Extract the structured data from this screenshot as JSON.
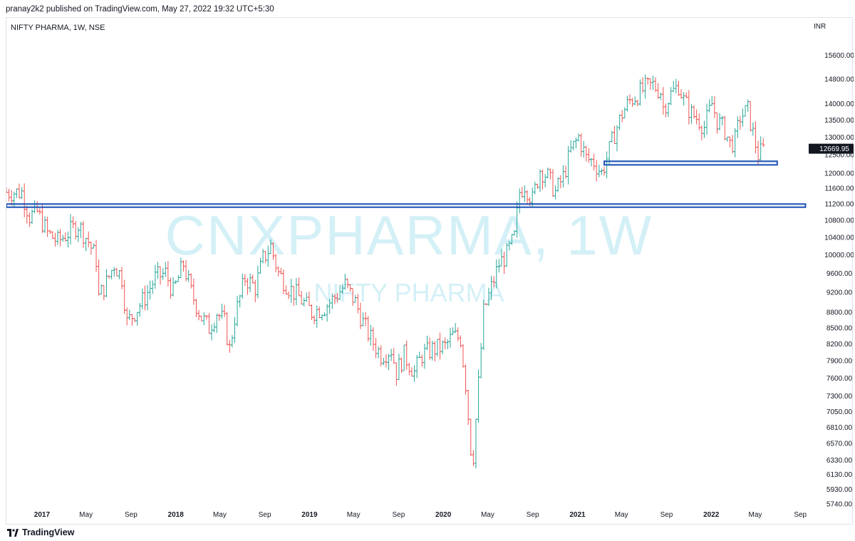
{
  "header": {
    "published": "pranay2k2 published on TradingView.com, May 27, 2022 19:32 UTC+5:30"
  },
  "footer": {
    "brand": "TradingView",
    "icon": "tradingview-logo-icon"
  },
  "chart": {
    "symbol_label": "NIFTY PHARMA, 1W, NSE",
    "currency": "INR",
    "watermark_main": "CNXPHARMA, 1W",
    "watermark_sub": "NIFTY PHARMA",
    "last_price_label": "12669.95"
  },
  "colors": {
    "up": "#26a69a",
    "down": "#ef5350",
    "watermark": "#d4f0f7",
    "zone": "#1e53b6",
    "price_tag": "#131722"
  },
  "chart_data": {
    "type": "ohlc",
    "title": "NIFTY PHARMA, 1W, NSE",
    "ylabel": "INR",
    "y_scale": "log",
    "ylim": [
      5740,
      16300
    ],
    "y_ticks": [
      15600,
      14800,
      14000,
      13500,
      13000,
      12500,
      12000,
      11600,
      11200,
      10800,
      10400,
      10000,
      9600,
      9200,
      8800,
      8500,
      8200,
      7900,
      7600,
      7300,
      7050,
      6810,
      6570,
      6330,
      6130,
      5930,
      5740
    ],
    "y_tick_labels": [
      "15600.00",
      "14800.00",
      "14000.00",
      "13500.00",
      "13000.00",
      "12500.00",
      "12000.00",
      "11600.00",
      "11200.00",
      "10800.00",
      "10400.00",
      "10000.00",
      "9600.00",
      "9200.00",
      "8800.00",
      "8500.00",
      "8200.00",
      "7900.00",
      "7600.00",
      "7300.00",
      "7050.00",
      "6810.00",
      "6570.00",
      "6330.00",
      "6130.00",
      "5930.00",
      "5740.00"
    ],
    "x_range": [
      "2016-09-26",
      "2022-09-20"
    ],
    "x_ticks": [
      {
        "date": "2017-01-01",
        "label": "2017",
        "major": true
      },
      {
        "date": "2017-05-01",
        "label": "May",
        "major": false
      },
      {
        "date": "2017-09-01",
        "label": "Sep",
        "major": false
      },
      {
        "date": "2018-01-01",
        "label": "2018",
        "major": true
      },
      {
        "date": "2018-05-01",
        "label": "May",
        "major": false
      },
      {
        "date": "2018-09-01",
        "label": "Sep",
        "major": false
      },
      {
        "date": "2019-01-01",
        "label": "2019",
        "major": true
      },
      {
        "date": "2019-05-01",
        "label": "May",
        "major": false
      },
      {
        "date": "2019-09-01",
        "label": "Sep",
        "major": false
      },
      {
        "date": "2020-01-01",
        "label": "2020",
        "major": true
      },
      {
        "date": "2020-05-01",
        "label": "May",
        "major": false
      },
      {
        "date": "2020-09-01",
        "label": "Sep",
        "major": false
      },
      {
        "date": "2021-01-01",
        "label": "2021",
        "major": true
      },
      {
        "date": "2021-05-01",
        "label": "May",
        "major": false
      },
      {
        "date": "2021-09-01",
        "label": "Sep",
        "major": false
      },
      {
        "date": "2022-01-01",
        "label": "2022",
        "major": true
      },
      {
        "date": "2022-05-01",
        "label": "May",
        "major": false
      },
      {
        "date": "2022-09-01",
        "label": "Sep",
        "major": false
      }
    ],
    "last_price": 12669.95,
    "zones": [
      {
        "name": "support-zone-upper",
        "from_date": "2021-03-15",
        "to_date": "2022-06-30",
        "low": 12220,
        "high": 12320
      },
      {
        "name": "support-zone-lower",
        "from_date": "2016-09-26",
        "to_date": "2022-09-15",
        "low": 11120,
        "high": 11200
      }
    ],
    "series": [
      {
        "date": "2016-09-26",
        "close": 11500
      },
      {
        "date": "2016-11-07",
        "close": 11500
      },
      {
        "date": "2016-11-28",
        "close": 10900
      },
      {
        "date": "2016-12-19",
        "close": 11000
      },
      {
        "date": "2017-01-16",
        "close": 10500
      },
      {
        "date": "2017-02-13",
        "close": 10300
      },
      {
        "date": "2017-03-13",
        "close": 10500
      },
      {
        "date": "2017-04-10",
        "close": 10700
      },
      {
        "date": "2017-05-08",
        "close": 10300
      },
      {
        "date": "2017-05-29",
        "close": 9900
      },
      {
        "date": "2017-06-05",
        "close": 9100
      },
      {
        "date": "2017-06-26",
        "close": 9400
      },
      {
        "date": "2017-07-17",
        "close": 9800
      },
      {
        "date": "2017-08-07",
        "close": 9500
      },
      {
        "date": "2017-08-21",
        "close": 8600
      },
      {
        "date": "2017-09-11",
        "close": 8800
      },
      {
        "date": "2017-10-09",
        "close": 9100
      },
      {
        "date": "2017-11-06",
        "close": 9500
      },
      {
        "date": "2017-12-04",
        "close": 9600
      },
      {
        "date": "2017-12-25",
        "close": 9200
      },
      {
        "date": "2018-01-22",
        "close": 9800
      },
      {
        "date": "2018-02-12",
        "close": 9200
      },
      {
        "date": "2018-03-12",
        "close": 8700
      },
      {
        "date": "2018-04-02",
        "close": 8500
      },
      {
        "date": "2018-04-23",
        "close": 8800
      },
      {
        "date": "2018-05-14",
        "close": 8600
      },
      {
        "date": "2018-05-28",
        "close": 8100
      },
      {
        "date": "2018-06-11",
        "close": 8700
      },
      {
        "date": "2018-07-09",
        "close": 9500
      },
      {
        "date": "2018-08-06",
        "close": 9300
      },
      {
        "date": "2018-08-27",
        "close": 9900
      },
      {
        "date": "2018-09-17",
        "close": 10200
      },
      {
        "date": "2018-10-08",
        "close": 9600
      },
      {
        "date": "2018-11-05",
        "close": 9300
      },
      {
        "date": "2018-12-03",
        "close": 9100
      },
      {
        "date": "2019-01-07",
        "close": 8800
      },
      {
        "date": "2019-02-11",
        "close": 8900
      },
      {
        "date": "2019-03-11",
        "close": 9100
      },
      {
        "date": "2019-04-08",
        "close": 9350
      },
      {
        "date": "2019-05-06",
        "close": 9000
      },
      {
        "date": "2019-05-27",
        "close": 8600
      },
      {
        "date": "2019-06-17",
        "close": 8300
      },
      {
        "date": "2019-07-15",
        "close": 8000
      },
      {
        "date": "2019-08-12",
        "close": 8100
      },
      {
        "date": "2019-08-26",
        "close": 7700
      },
      {
        "date": "2019-09-16",
        "close": 8000
      },
      {
        "date": "2019-10-14",
        "close": 7700
      },
      {
        "date": "2019-11-04",
        "close": 8000
      },
      {
        "date": "2019-12-02",
        "close": 8100
      },
      {
        "date": "2020-01-06",
        "close": 8150
      },
      {
        "date": "2020-01-27",
        "close": 8350
      },
      {
        "date": "2020-02-17",
        "close": 8300
      },
      {
        "date": "2020-03-02",
        "close": 7500
      },
      {
        "date": "2020-03-16",
        "close": 6500
      },
      {
        "date": "2020-03-23",
        "close": 6400
      },
      {
        "date": "2020-04-06",
        "close": 7500
      },
      {
        "date": "2020-04-20",
        "close": 8800
      },
      {
        "date": "2020-05-11",
        "close": 9300
      },
      {
        "date": "2020-06-01",
        "close": 9800
      },
      {
        "date": "2020-06-22",
        "close": 10000
      },
      {
        "date": "2020-07-13",
        "close": 10400
      },
      {
        "date": "2020-07-27",
        "close": 11500
      },
      {
        "date": "2020-08-10",
        "close": 11700
      },
      {
        "date": "2020-08-31",
        "close": 11300
      },
      {
        "date": "2020-09-21",
        "close": 12100
      },
      {
        "date": "2020-10-12",
        "close": 11900
      },
      {
        "date": "2020-11-02",
        "close": 11500
      },
      {
        "date": "2020-11-23",
        "close": 11900
      },
      {
        "date": "2020-12-14",
        "close": 12600
      },
      {
        "date": "2021-01-04",
        "close": 13000
      },
      {
        "date": "2021-01-25",
        "close": 12400
      },
      {
        "date": "2021-02-15",
        "close": 12300
      },
      {
        "date": "2021-03-08",
        "close": 12000
      },
      {
        "date": "2021-03-22",
        "close": 12400
      },
      {
        "date": "2021-04-12",
        "close": 13100
      },
      {
        "date": "2021-05-03",
        "close": 13700
      },
      {
        "date": "2021-05-24",
        "close": 14100
      },
      {
        "date": "2021-06-14",
        "close": 14300
      },
      {
        "date": "2021-07-05",
        "close": 14500
      },
      {
        "date": "2021-07-26",
        "close": 14600
      },
      {
        "date": "2021-08-16",
        "close": 14400
      },
      {
        "date": "2021-08-23",
        "close": 13900
      },
      {
        "date": "2021-09-13",
        "close": 14300
      },
      {
        "date": "2021-10-04",
        "close": 14600
      },
      {
        "date": "2021-10-18",
        "close": 14100
      },
      {
        "date": "2021-11-08",
        "close": 13700
      },
      {
        "date": "2021-11-29",
        "close": 13500
      },
      {
        "date": "2021-12-13",
        "close": 13300
      },
      {
        "date": "2022-01-03",
        "close": 14000
      },
      {
        "date": "2022-01-17",
        "close": 13500
      },
      {
        "date": "2022-02-07",
        "close": 13200
      },
      {
        "date": "2022-02-21",
        "close": 12800
      },
      {
        "date": "2022-03-07",
        "close": 12900
      },
      {
        "date": "2022-03-21",
        "close": 13600
      },
      {
        "date": "2022-04-11",
        "close": 13800
      },
      {
        "date": "2022-04-25",
        "close": 13100
      },
      {
        "date": "2022-05-09",
        "close": 12500
      },
      {
        "date": "2022-05-27",
        "close": 12670
      }
    ]
  }
}
